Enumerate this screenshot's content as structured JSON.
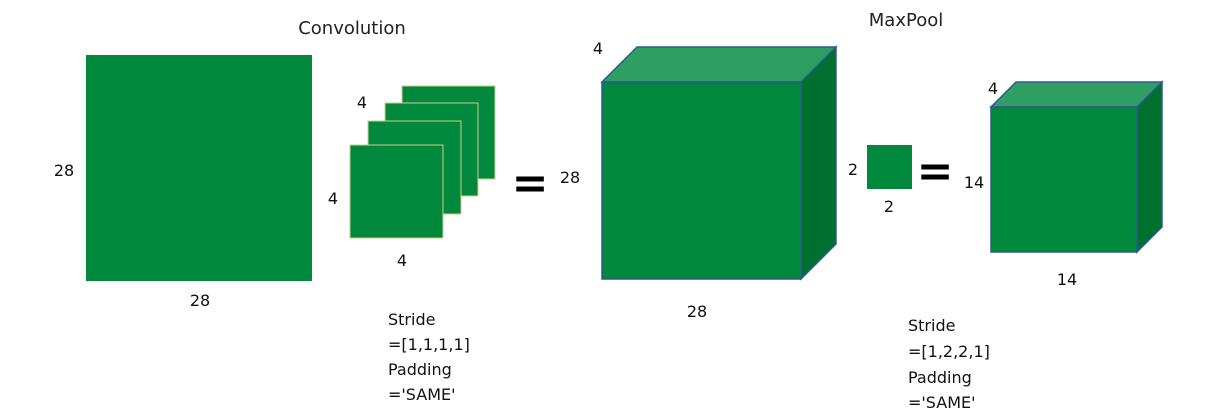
{
  "convolution": {
    "title": "Convolution",
    "input": {
      "height_label": "28",
      "width_label": "28"
    },
    "filter": {
      "depth_label": "4",
      "height_label": "4",
      "width_label": "4"
    },
    "stride": "Stride",
    "stride_value": "=[1,1,1,1]",
    "padding": "Padding",
    "padding_value": "='SAME'"
  },
  "equals": "=",
  "conv_output": {
    "depth_label": "4",
    "height_label": "28",
    "width_label": "28"
  },
  "maxpool": {
    "title": "MaxPool",
    "window": {
      "height_label": "2",
      "width_label": "2"
    },
    "stride": "Stride",
    "stride_value": "=[1,2,2,1]",
    "padding": "Padding",
    "padding_value": "='SAME'"
  },
  "pool_output": {
    "depth_label": "4",
    "height_label": "14",
    "width_label": "14"
  },
  "colors": {
    "front": "#00893C",
    "top": "#2E9E62",
    "side": "#00702F",
    "edge": "#2E5A93",
    "layer_edge": "#D2CE86"
  }
}
